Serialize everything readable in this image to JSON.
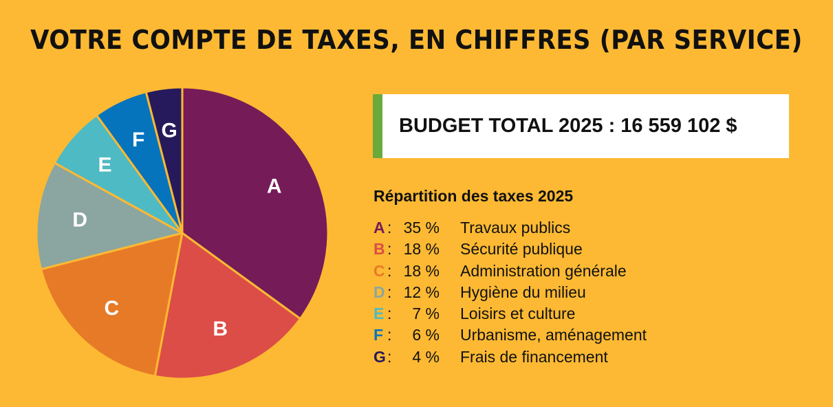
{
  "title": "VOTRE COMPTE DE TAXES, EN CHIFFRES (PAR SERVICE)",
  "budget": {
    "label": "BUDGET TOTAL 2025 :",
    "value": "16 559 102 $"
  },
  "legend_title": "Répartition des taxes 2025",
  "chart_data": {
    "type": "pie",
    "slices": [
      {
        "letter": "A",
        "value": 35,
        "pct_label": "35 %",
        "name": "Travaux publics",
        "color": "#751C58"
      },
      {
        "letter": "B",
        "value": 18,
        "pct_label": "18 %",
        "name": "Sécurité publique",
        "color": "#DB4D46"
      },
      {
        "letter": "C",
        "value": 18,
        "pct_label": "18 %",
        "name": "Administration générale",
        "color": "#E77A27"
      },
      {
        "letter": "D",
        "value": 12,
        "pct_label": "12 %",
        "name": "Hygiène du milieu",
        "color": "#8BA6A0"
      },
      {
        "letter": "E",
        "value": 7,
        "pct_label": "7 %",
        "name": "Loisirs et culture",
        "color": "#4EBAC3"
      },
      {
        "letter": "F",
        "value": 6,
        "pct_label": "6 %",
        "name": "Urbanisme, aménagement",
        "color": "#0674BD"
      },
      {
        "letter": "G",
        "value": 4,
        "pct_label": "4 %",
        "name": "Frais de financement",
        "color": "#271A5C"
      }
    ],
    "label_color": "#ffffff",
    "separator_color": "#FDB933"
  }
}
